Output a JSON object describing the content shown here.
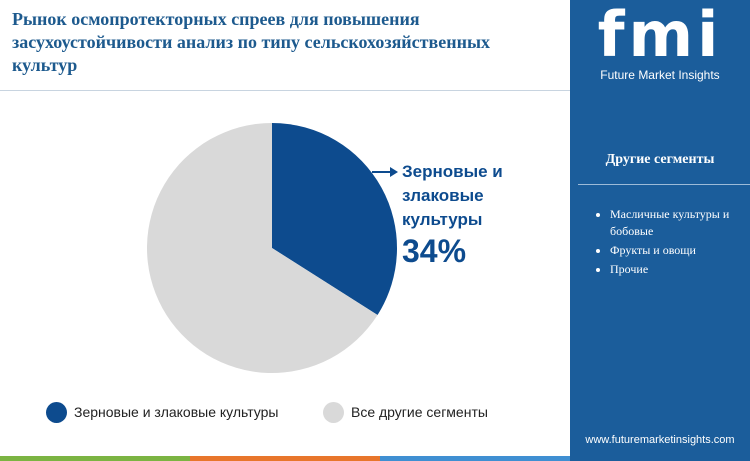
{
  "chart_data": {
    "type": "pie",
    "title": "Рынок осмопротекторных спреев для повышения засухоустойчивости  анализ по типу сельскохозяйственных культур",
    "categories": [
      "Зерновые и злаковые культуры",
      "Все другие сегменты"
    ],
    "values": [
      34,
      66
    ],
    "value_labels": [
      "34%",
      null
    ],
    "colors": [
      "#0d4b8e",
      "#d9d9d9"
    ]
  },
  "sidebar": {
    "logo": "fmi",
    "logo_tagline": "Future Market Insights",
    "heading": "Другие сегменты",
    "items": [
      "Масличные культуры и бобовые",
      "Фрукты и овощи",
      "Прочие"
    ],
    "url": "www.futuremarketinsights.com"
  }
}
